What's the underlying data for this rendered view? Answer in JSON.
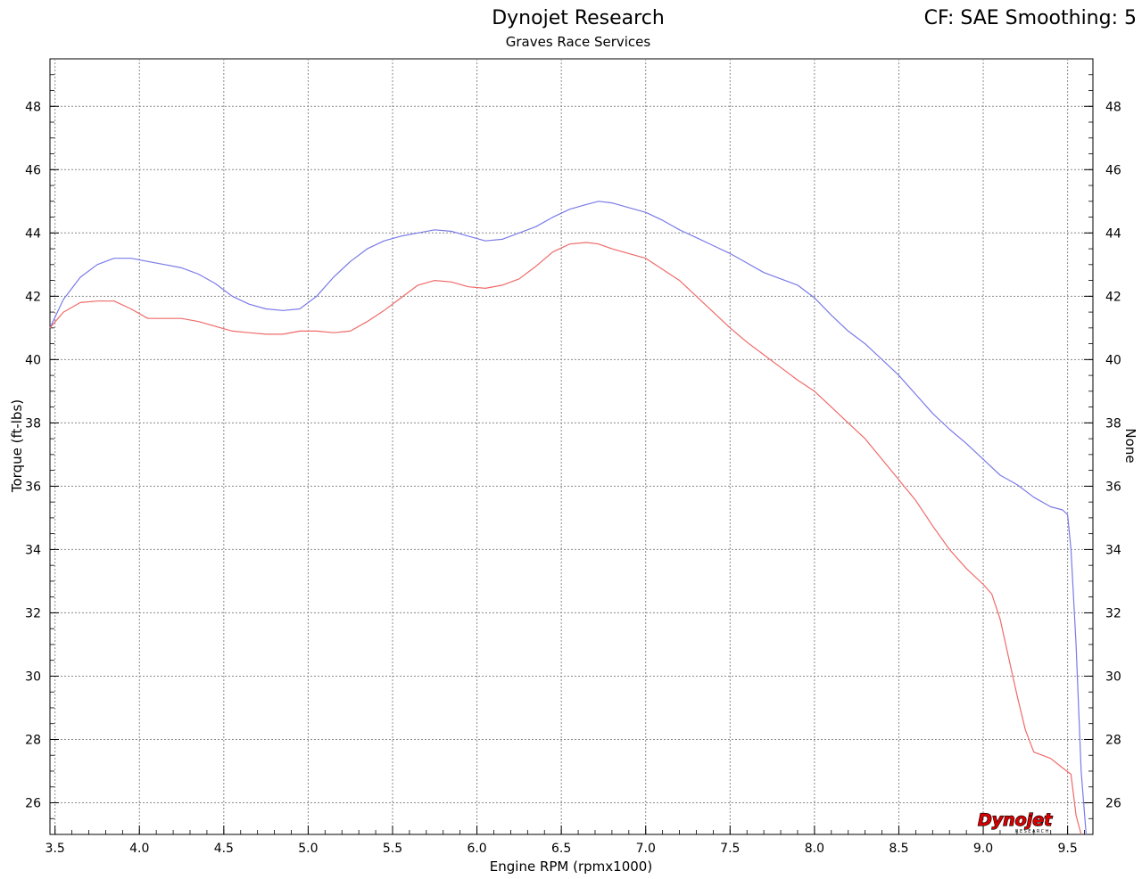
{
  "header": {
    "title": "Dynojet Research",
    "subtitle": "Graves Race Services",
    "correction": "CF: SAE Smoothing: 5"
  },
  "logo": {
    "text": "Dynojet",
    "subtext": "RESEARCH"
  },
  "chart_data": {
    "type": "line",
    "xlabel": "Engine RPM (rpmx1000)",
    "ylabel": "Torque (ft-lbs)",
    "y2label": "None",
    "xlim": [
      3.47,
      9.65
    ],
    "ylim": [
      25.0,
      49.5
    ],
    "xticks": [
      "3.5",
      "4.0",
      "4.5",
      "5.0",
      "5.5",
      "6.0",
      "6.5",
      "7.0",
      "7.5",
      "8.0",
      "8.5",
      "9.0",
      "9.5"
    ],
    "yticks": [
      "26",
      "28",
      "30",
      "32",
      "34",
      "36",
      "38",
      "40",
      "42",
      "44",
      "46",
      "48"
    ],
    "grid": true,
    "series": [
      {
        "color": "#7a7ae8",
        "x": [
          3.47,
          3.55,
          3.65,
          3.75,
          3.85,
          3.95,
          4.05,
          4.15,
          4.25,
          4.35,
          4.45,
          4.55,
          4.65,
          4.75,
          4.85,
          4.95,
          5.05,
          5.15,
          5.25,
          5.35,
          5.45,
          5.55,
          5.65,
          5.75,
          5.85,
          5.95,
          6.05,
          6.15,
          6.25,
          6.35,
          6.45,
          6.55,
          6.65,
          6.72,
          6.8,
          6.9,
          7.0,
          7.1,
          7.2,
          7.3,
          7.4,
          7.5,
          7.6,
          7.7,
          7.8,
          7.9,
          8.0,
          8.1,
          8.2,
          8.3,
          8.4,
          8.5,
          8.6,
          8.7,
          8.8,
          8.9,
          9.0,
          9.1,
          9.2,
          9.3,
          9.4,
          9.47,
          9.5,
          9.52,
          9.55,
          9.58,
          9.61
        ],
        "values": [
          41.0,
          41.9,
          42.6,
          43.0,
          43.2,
          43.2,
          43.1,
          43.0,
          42.9,
          42.7,
          42.4,
          42.0,
          41.75,
          41.6,
          41.55,
          41.6,
          42.0,
          42.6,
          43.1,
          43.5,
          43.75,
          43.9,
          44.0,
          44.1,
          44.05,
          43.9,
          43.75,
          43.8,
          44.0,
          44.2,
          44.5,
          44.75,
          44.9,
          45.0,
          44.95,
          44.8,
          44.65,
          44.4,
          44.1,
          43.85,
          43.6,
          43.35,
          43.05,
          42.75,
          42.55,
          42.35,
          41.95,
          41.4,
          40.9,
          40.5,
          40.0,
          39.5,
          38.9,
          38.3,
          37.8,
          37.35,
          36.85,
          36.35,
          36.05,
          35.65,
          35.35,
          35.25,
          35.1,
          34.0,
          31.0,
          27.0,
          25.0
        ]
      },
      {
        "color": "#f06a6a",
        "x": [
          3.47,
          3.55,
          3.65,
          3.75,
          3.85,
          3.95,
          4.05,
          4.15,
          4.25,
          4.35,
          4.45,
          4.55,
          4.65,
          4.75,
          4.85,
          4.95,
          5.05,
          5.15,
          5.25,
          5.35,
          5.45,
          5.55,
          5.65,
          5.75,
          5.85,
          5.95,
          6.05,
          6.15,
          6.25,
          6.35,
          6.45,
          6.55,
          6.65,
          6.72,
          6.8,
          6.9,
          7.0,
          7.1,
          7.2,
          7.3,
          7.4,
          7.5,
          7.6,
          7.7,
          7.8,
          7.9,
          8.0,
          8.1,
          8.2,
          8.3,
          8.4,
          8.5,
          8.6,
          8.7,
          8.8,
          8.9,
          9.0,
          9.05,
          9.1,
          9.15,
          9.2,
          9.25,
          9.3,
          9.35,
          9.4,
          9.47,
          9.52,
          9.55,
          9.58
        ],
        "values": [
          41.0,
          41.5,
          41.8,
          41.85,
          41.85,
          41.6,
          41.3,
          41.3,
          41.3,
          41.2,
          41.05,
          40.9,
          40.85,
          40.8,
          40.8,
          40.9,
          40.9,
          40.85,
          40.9,
          41.2,
          41.55,
          41.95,
          42.35,
          42.5,
          42.45,
          42.3,
          42.25,
          42.35,
          42.55,
          42.95,
          43.4,
          43.65,
          43.7,
          43.65,
          43.5,
          43.35,
          43.2,
          42.85,
          42.5,
          42.0,
          41.5,
          41.0,
          40.55,
          40.15,
          39.75,
          39.35,
          39.0,
          38.5,
          38.0,
          37.5,
          36.85,
          36.2,
          35.55,
          34.75,
          34.0,
          33.4,
          32.9,
          32.6,
          31.8,
          30.6,
          29.4,
          28.3,
          27.6,
          27.5,
          27.4,
          27.1,
          26.9,
          25.6,
          25.0
        ]
      }
    ]
  }
}
